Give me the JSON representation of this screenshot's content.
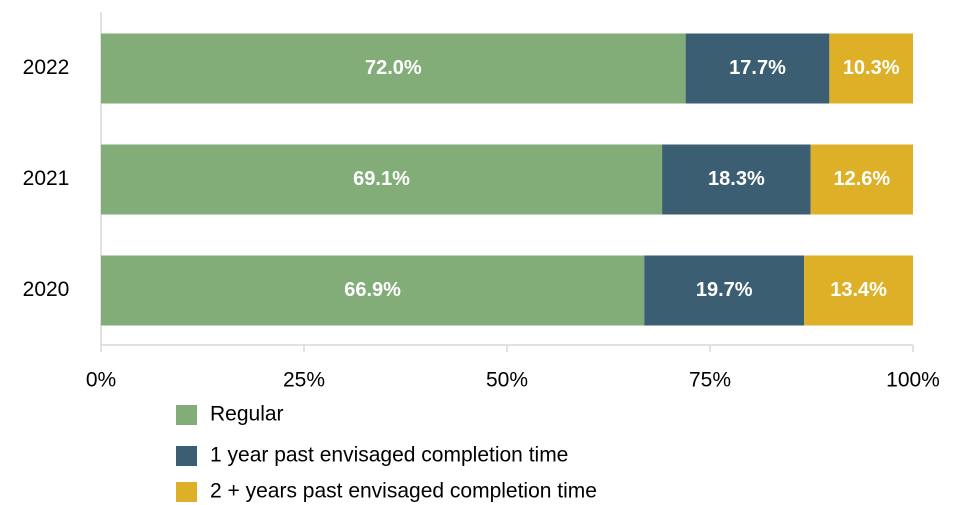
{
  "chart_data": {
    "type": "stacked_barh",
    "categories": [
      "2022",
      "2021",
      "2020"
    ],
    "series": [
      {
        "name": "Regular",
        "color": "#82ad78",
        "values": [
          72.0,
          69.1,
          66.9
        ],
        "value_labels": [
          "72.0%",
          "69.1%",
          "66.9%"
        ]
      },
      {
        "name": "1 year past envisaged completion time",
        "color": "#3b5e72",
        "values": [
          17.7,
          18.3,
          19.7
        ],
        "value_labels": [
          "17.7%",
          "18.3%",
          "19.7%"
        ]
      },
      {
        "name": "2 + years past envisaged completion time",
        "color": "#ddb027",
        "values": [
          10.3,
          12.6,
          13.4
        ],
        "value_labels": [
          "10.3%",
          "12.6%",
          "13.4%"
        ]
      }
    ],
    "xlim": [
      0,
      100
    ],
    "xticks": [
      {
        "value": 0,
        "label": "0%"
      },
      {
        "value": 25,
        "label": "25%"
      },
      {
        "value": 50,
        "label": "50%"
      },
      {
        "value": 75,
        "label": "75%"
      },
      {
        "value": 100,
        "label": "100%"
      }
    ],
    "legend": "bottom"
  }
}
